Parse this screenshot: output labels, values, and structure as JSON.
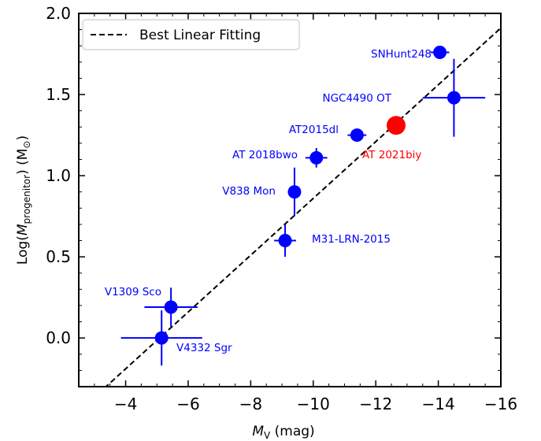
{
  "chart_data": {
    "type": "scatter",
    "title": "",
    "xlabel_main": "M",
    "xlabel_sub": "V",
    "xlabel_unit": " (mag)",
    "ylabel_pre": "Log(",
    "ylabel_main": "M",
    "ylabel_sub": "progenitor",
    "ylabel_post": ") (M",
    "ylabel_sun": "⊙",
    "ylabel_close": ")",
    "xlim": [
      -2.5,
      -16
    ],
    "ylim": [
      -0.3,
      2.0
    ],
    "xticks": [
      -4,
      -6,
      -8,
      -10,
      -12,
      -14,
      -16
    ],
    "xtick_labels": [
      "−4",
      "−6",
      "−8",
      "−10",
      "−12",
      "−14",
      "−16"
    ],
    "yticks": [
      0.0,
      0.5,
      1.0,
      1.5,
      2.0
    ],
    "ytick_labels": [
      "0.0",
      "0.5",
      "1.0",
      "1.5",
      "2.0"
    ],
    "grid": false,
    "legend": {
      "placement": "top-left",
      "entries": [
        {
          "label": "Best Linear Fitting",
          "style": "dashed"
        }
      ]
    },
    "fit_line": {
      "slope": 0.175,
      "intercept": -0.89
    },
    "points": [
      {
        "name": "V4332 Sgr",
        "x": -5.15,
        "y": 0.0,
        "xerr": 1.3,
        "yerr_lo": 0.17,
        "yerr_hi": 0.17,
        "color": "#0000ff"
      },
      {
        "name": "V1309 Sco",
        "x": -5.45,
        "y": 0.19,
        "xerr": 0.85,
        "yerr_lo": 0.12,
        "yerr_hi": 0.12,
        "color": "#0000ff"
      },
      {
        "name": "M31-LRN-2015",
        "x": -9.1,
        "y": 0.6,
        "xerr": 0.35,
        "yerr_lo": 0.1,
        "yerr_hi": 0.1,
        "color": "#0000ff"
      },
      {
        "name": "V838 Mon",
        "x": -9.4,
        "y": 0.9,
        "xerr": 0.0,
        "yerr_lo": 0.15,
        "yerr_hi": 0.15,
        "color": "#0000ff"
      },
      {
        "name": "AT 2018bwo",
        "x": -10.1,
        "y": 1.11,
        "xerr": 0.35,
        "yerr_lo": 0.06,
        "yerr_hi": 0.06,
        "color": "#0000ff"
      },
      {
        "name": "AT2015dl",
        "x": -11.4,
        "y": 1.25,
        "xerr": 0.3,
        "yerr_lo": 0.0,
        "yerr_hi": 0.0,
        "color": "#0000ff"
      },
      {
        "name": "SNHunt248",
        "x": -14.05,
        "y": 1.76,
        "xerr": 0.3,
        "yerr_lo": 0.0,
        "yerr_hi": 0.0,
        "color": "#0000ff"
      },
      {
        "name": "NGC4490 OT",
        "x": -14.5,
        "y": 1.48,
        "xerr": 1.0,
        "yerr_lo": 0.24,
        "yerr_hi": 0.24,
        "color": "#0000ff"
      },
      {
        "name": "AT 2021biy",
        "x": -12.65,
        "y": 1.31,
        "xerr": 0.0,
        "yerr_lo": 0.05,
        "yerr_hi": 0.05,
        "color": "#ff0000",
        "highlight": true
      }
    ]
  }
}
